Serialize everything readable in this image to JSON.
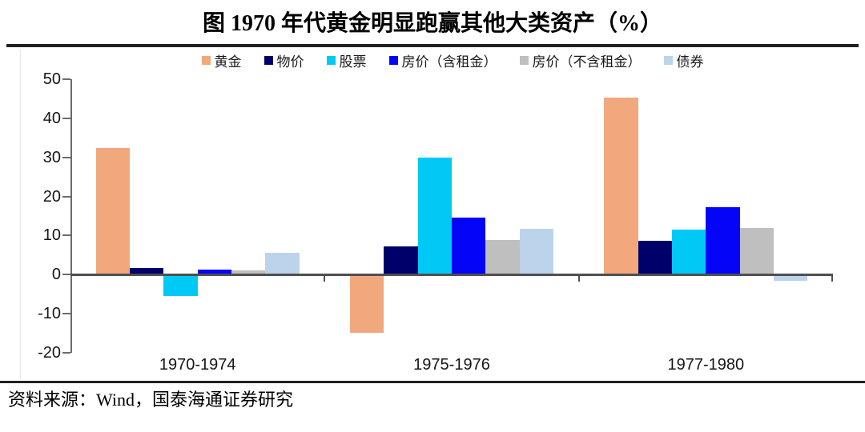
{
  "title": "图 1970 年代黄金明显跑赢其他大类资产（%）",
  "source": "资料来源：Wind，国泰海通证券研究",
  "chart_data": {
    "type": "bar",
    "title": "图 1970 年代黄金明显跑赢其他大类资产（%）",
    "categories": [
      "1970-1974",
      "1975-1976",
      "1977-1980"
    ],
    "series": [
      {
        "key": "gold",
        "name": "黄金",
        "color": "#F1A87D",
        "values": [
          32.5,
          -14.8,
          45.2
        ]
      },
      {
        "key": "cpi",
        "name": "物价",
        "color": "#00006B",
        "values": [
          1.7,
          7.3,
          8.6
        ]
      },
      {
        "key": "stocks",
        "name": "股票",
        "color": "#00C9F5",
        "values": [
          -5.5,
          29.9,
          11.6
        ]
      },
      {
        "key": "house-with-rent",
        "name": "房价（含租金）",
        "color": "#0404F7",
        "values": [
          1.3,
          14.5,
          17.2
        ]
      },
      {
        "key": "house-without-rent",
        "name": "房价（不含租金）",
        "color": "#BFBFBF",
        "values": [
          1.1,
          8.9,
          11.9
        ]
      },
      {
        "key": "bonds",
        "name": "债券",
        "color": "#BCD4EB",
        "values": [
          5.6,
          11.8,
          -1.5
        ]
      }
    ],
    "ylim": [
      -20,
      50
    ],
    "yticks": [
      50,
      40,
      30,
      20,
      10,
      0,
      -10,
      -20
    ],
    "xlabel": "",
    "ylabel": "",
    "grid": false,
    "legend_position": "top"
  }
}
